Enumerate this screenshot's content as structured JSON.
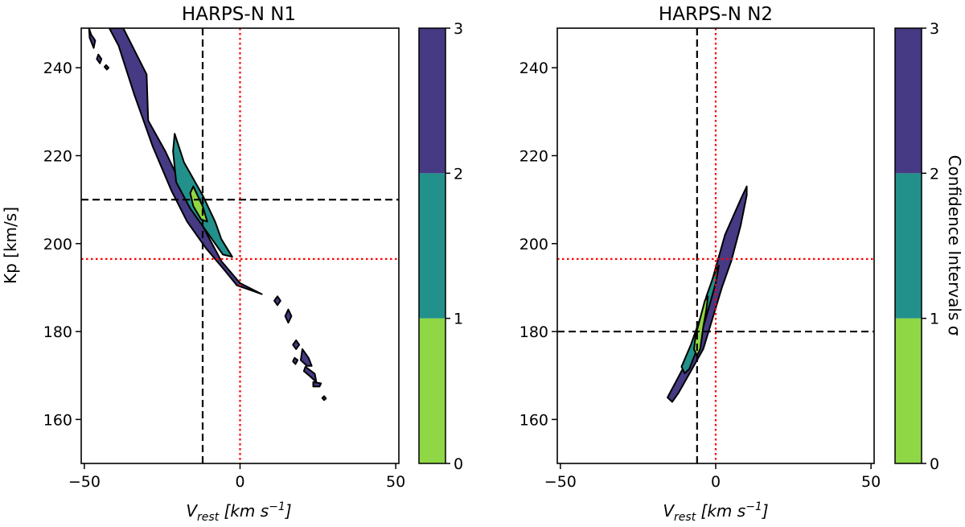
{
  "chart_data": [
    {
      "type": "contour",
      "title": "HARPS-N N1",
      "xlabel": "V",
      "xlabel_sub": "rest",
      "xlabel_unit": " [km s",
      "xlabel_exp": "−1",
      "xlabel_close": "]",
      "ylabel": "Kp [km/s]",
      "xlim": [
        -51,
        51
      ],
      "ylim": [
        150,
        249
      ],
      "xticks": [
        -50,
        0,
        50
      ],
      "xtick_labels": [
        "−50",
        "0",
        "50"
      ],
      "yticks": [
        160,
        180,
        200,
        220,
        240
      ],
      "ytick_labels": [
        "160",
        "180",
        "200",
        "220",
        "240"
      ],
      "grid": false,
      "reference_lines": [
        {
          "orientation": "vertical",
          "value": -12,
          "color": "#000000",
          "style": "dashed"
        },
        {
          "orientation": "horizontal",
          "value": 210,
          "color": "#000000",
          "style": "dashed"
        },
        {
          "orientation": "vertical",
          "value": 0,
          "color": "#ff0000",
          "style": "dotted"
        },
        {
          "orientation": "horizontal",
          "value": 196.5,
          "color": "#ff0000",
          "style": "dotted"
        }
      ],
      "levels": [
        {
          "sigma": "2-3",
          "color": "#453a83",
          "regions": [
            [
              [
                -37.5,
                249
              ],
              [
                -30,
                238.5
              ],
              [
                -29.5,
                228
              ],
              [
                -24,
                221
              ],
              [
                -18,
                212
              ],
              [
                -12,
                204
              ],
              [
                -6,
                196
              ],
              [
                0,
                191
              ],
              [
                7,
                188.5
              ],
              [
                3,
                189.5
              ],
              [
                -1,
                190.5
              ],
              [
                -5,
                194
              ],
              [
                -11,
                199
              ],
              [
                -17,
                205
              ],
              [
                -22,
                212
              ],
              [
                -28,
                222
              ],
              [
                -34,
                234
              ],
              [
                -39,
                245
              ],
              [
                -42,
                249
              ]
            ],
            [
              [
                -48.5,
                249
              ],
              [
                -47.8,
                247.5
              ],
              [
                -46.5,
                246.2
              ],
              [
                -47,
                244.5
              ],
              [
                -48.3,
                246.8
              ]
            ],
            [
              [
                -45.5,
                243
              ],
              [
                -44.5,
                242
              ],
              [
                -45,
                241
              ],
              [
                -46,
                242
              ]
            ],
            [
              [
                -43,
                240.6
              ],
              [
                -42.2,
                240
              ],
              [
                -42.8,
                239.6
              ],
              [
                -43.5,
                240.2
              ]
            ],
            [
              [
                12,
                188
              ],
              [
                13,
                187
              ],
              [
                12,
                186
              ],
              [
                11,
                187
              ]
            ],
            [
              [
                15.5,
                185
              ],
              [
                16.5,
                183.5
              ],
              [
                15.5,
                182
              ],
              [
                14.5,
                183.5
              ]
            ],
            [
              [
                18,
                178
              ],
              [
                19,
                177
              ],
              [
                18,
                176
              ],
              [
                17,
                177
              ]
            ],
            [
              [
                20,
                176
              ],
              [
                22,
                174
              ],
              [
                23,
                172.2
              ],
              [
                21.5,
                172.2
              ],
              [
                19.5,
                173.5
              ]
            ],
            [
              [
                17.5,
                174
              ],
              [
                18.5,
                173.5
              ],
              [
                17.8,
                172.6
              ],
              [
                17,
                173.2
              ]
            ],
            [
              [
                21,
                172
              ],
              [
                24,
                170.4
              ],
              [
                24.5,
                168.5
              ],
              [
                22.5,
                169.8
              ],
              [
                20.5,
                171
              ]
            ],
            [
              [
                23.5,
                168.5
              ],
              [
                26,
                168.2
              ],
              [
                25.5,
                167.5
              ],
              [
                23.5,
                167.5
              ]
            ],
            [
              [
                27,
                165.3
              ],
              [
                27.6,
                164.8
              ],
              [
                27,
                164.4
              ],
              [
                26.4,
                164.9
              ]
            ]
          ]
        },
        {
          "sigma": "1-2",
          "color": "#22908b",
          "regions": [
            [
              [
                -21,
                225
              ],
              [
                -18,
                218.5
              ],
              [
                -12,
                211
              ],
              [
                -8,
                205
              ],
              [
                -6,
                201
              ],
              [
                -2.5,
                197
              ],
              [
                -5.5,
                197.5
              ],
              [
                -10,
                202
              ],
              [
                -16,
                208
              ],
              [
                -20.5,
                214
              ],
              [
                -21.5,
                221
              ]
            ]
          ]
        },
        {
          "sigma": "0-1",
          "color": "#8fd744",
          "regions": [
            [
              [
                -15,
                213
              ],
              [
                -12,
                208.5
              ],
              [
                -10.5,
                205
              ],
              [
                -12.5,
                205.5
              ],
              [
                -15,
                208.5
              ],
              [
                -16,
                211.5
              ]
            ]
          ]
        }
      ]
    },
    {
      "type": "contour",
      "title": "HARPS-N N2",
      "xlabel": "V",
      "xlabel_sub": "rest",
      "xlabel_unit": " [km s",
      "xlabel_exp": "−1",
      "xlabel_close": "]",
      "ylabel": "",
      "xlim": [
        -51,
        51
      ],
      "ylim": [
        150,
        249
      ],
      "xticks": [
        -50,
        0,
        50
      ],
      "xtick_labels": [
        "−50",
        "0",
        "50"
      ],
      "yticks": [
        160,
        180,
        200,
        220,
        240
      ],
      "ytick_labels": [
        "160",
        "180",
        "200",
        "220",
        "240"
      ],
      "grid": false,
      "reference_lines": [
        {
          "orientation": "vertical",
          "value": -6,
          "color": "#000000",
          "style": "dashed"
        },
        {
          "orientation": "horizontal",
          "value": 180,
          "color": "#000000",
          "style": "dashed"
        },
        {
          "orientation": "vertical",
          "value": 0,
          "color": "#ff0000",
          "style": "dotted"
        },
        {
          "orientation": "horizontal",
          "value": 196.5,
          "color": "#ff0000",
          "style": "dotted"
        }
      ],
      "levels": [
        {
          "sigma": "2-3",
          "color": "#453a83",
          "regions": [
            [
              [
                -15.5,
                165
              ],
              [
                -11,
                171
              ],
              [
                -7,
                176
              ],
              [
                -4,
                184
              ],
              [
                -1,
                192
              ],
              [
                3,
                202
              ],
              [
                8,
                210
              ],
              [
                10,
                213
              ],
              [
                10,
                211
              ],
              [
                8,
                204
              ],
              [
                5,
                196
              ],
              [
                2,
                190
              ],
              [
                -1,
                183
              ],
              [
                -4,
                176
              ],
              [
                -8,
                171
              ],
              [
                -12,
                166
              ],
              [
                -14,
                164
              ]
            ]
          ]
        },
        {
          "sigma": "1-2",
          "color": "#22908b",
          "regions": [
            [
              [
                -11,
                172
              ],
              [
                -8,
                177
              ],
              [
                -5,
                183
              ],
              [
                -3,
                188
              ],
              [
                -0.5,
                193
              ],
              [
                1,
                195
              ],
              [
                0,
                191
              ],
              [
                -2,
                186
              ],
              [
                -4,
                181
              ],
              [
                -6,
                176
              ],
              [
                -8.5,
                171.5
              ],
              [
                -10,
                170.5
              ]
            ]
          ]
        },
        {
          "sigma": "0-1",
          "color": "#8fd744",
          "regions": [
            [
              [
                -6.5,
                179
              ],
              [
                -5,
                183
              ],
              [
                -3.5,
                187
              ],
              [
                -2.5,
                188
              ],
              [
                -3,
                185
              ],
              [
                -4,
                181
              ],
              [
                -5,
                176
              ],
              [
                -6,
                174.5
              ],
              [
                -7,
                176
              ]
            ]
          ]
        }
      ]
    }
  ],
  "colorbar": {
    "label": "Confidence Intervals σ",
    "range": [
      0,
      3
    ],
    "ticks": [
      0,
      1,
      2,
      3
    ],
    "tick_labels": [
      "0",
      "1",
      "2",
      "3"
    ],
    "bands": [
      {
        "from": 0,
        "to": 1,
        "color": "#8fd744"
      },
      {
        "from": 1,
        "to": 2,
        "color": "#22908b"
      },
      {
        "from": 2,
        "to": 3,
        "color": "#453a83"
      }
    ]
  }
}
